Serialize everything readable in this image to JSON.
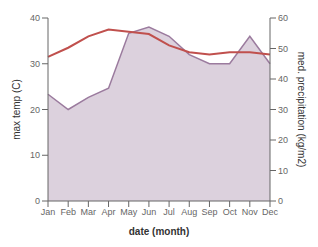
{
  "chart_data": {
    "type": "line",
    "categories": [
      "Jan",
      "Feb",
      "Mar",
      "Apr",
      "May",
      "Jun",
      "Jul",
      "Aug",
      "Sep",
      "Oct",
      "Nov",
      "Dec"
    ],
    "series": [
      {
        "type": "area",
        "axis": "y2",
        "color": "#9b7b9e",
        "values": [
          35.0,
          30.0,
          34.0,
          37.0,
          55.0,
          57.0,
          54.0,
          48.0,
          45.0,
          45.0,
          54.0,
          45.0
        ]
      },
      {
        "type": "line",
        "axis": "y",
        "color": "#c0504d",
        "values": [
          31.5,
          33.5,
          36.0,
          37.5,
          37.0,
          36.5,
          34.0,
          32.5,
          32.0,
          32.5,
          32.5,
          32.0
        ]
      }
    ],
    "xlabel": "date (month)",
    "ylabel": "max temp (C)",
    "y2label": "med. precipitation (kg/m2)",
    "ylim": [
      0,
      40
    ],
    "yticks": [
      0,
      10,
      20,
      30,
      40
    ],
    "y2lim": [
      0,
      60
    ],
    "y2ticks": [
      0,
      10,
      20,
      30,
      40,
      50,
      60
    ],
    "grid": false
  }
}
